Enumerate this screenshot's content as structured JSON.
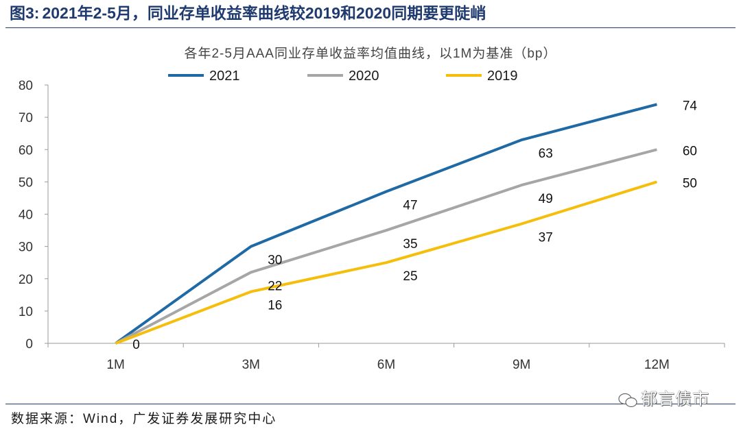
{
  "figure": {
    "title_prefix": "图3:",
    "title_body": "2021年2-5月，同业存单收益率曲线较2019和2020同期要更陡峭",
    "source": "数据来源：Wind，广发证券发展研究中心",
    "watermark": "郁言债市"
  },
  "chart_data": {
    "type": "line",
    "title": "各年2-5月AAA同业存单收益率均值曲线，以1M为基准（bp）",
    "xlabel": "",
    "ylabel": "",
    "categories": [
      "1M",
      "3M",
      "6M",
      "9M",
      "12M"
    ],
    "ylim": [
      0,
      80
    ],
    "yticks": [
      "0",
      "10",
      "20",
      "30",
      "40",
      "50",
      "60",
      "70",
      "80"
    ],
    "legend_position": "top",
    "grid": false,
    "series": [
      {
        "name": "2021",
        "color": "#1f6aa5",
        "values": [
          0,
          30,
          47,
          63,
          74
        ],
        "labels": [
          "0",
          "30",
          "47",
          "63",
          "74"
        ]
      },
      {
        "name": "2020",
        "color": "#a6a6a6",
        "values": [
          0,
          22,
          35,
          49,
          60
        ],
        "labels": [
          "",
          "22",
          "35",
          "49",
          "60"
        ]
      },
      {
        "name": "2019",
        "color": "#f5be0b",
        "values": [
          0,
          16,
          25,
          37,
          50
        ],
        "labels": [
          "",
          "16",
          "25",
          "37",
          "50"
        ]
      }
    ]
  }
}
